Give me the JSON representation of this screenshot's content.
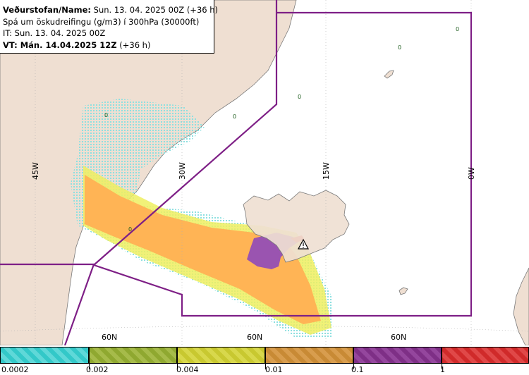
{
  "header": {
    "line1_label": "Veðurstofan/Name:",
    "line1_value": "Sun. 13. 04. 2025 00Z (+36 h)",
    "line2": "Spá um öskudreifingu (g/m3) í 300hPa (30000ft)",
    "line3": "IT: Sun. 13. 04. 2025 00Z",
    "line4_label": "VT: Mán. 14.04.2025 12Z",
    "line4_value": "(+36 h)"
  },
  "map": {
    "meridian_labels": [
      "45W",
      "30W",
      "15W",
      "0W"
    ],
    "parallel_labels": [
      "60N",
      "60N",
      "60N"
    ],
    "contour_labels": [
      "0",
      "0",
      "0",
      "0",
      "0",
      "0"
    ],
    "colors": {
      "land": "#efdfd2",
      "sea": "#ffffff",
      "coast": "#7a7a7a",
      "fir_boundary": "#7e1f86",
      "grid": "#b0b0b0",
      "ash_light_cyan": "#8ee0e0",
      "ash_yellow": "#eeee60",
      "ash_orange": "#ffb455",
      "ash_purple": "#9a54b0",
      "ash_red": "#e03a3a"
    },
    "volcano_marker": "warning-triangle-icon"
  },
  "legend": {
    "ticks": [
      "0.0002",
      "0.002",
      "0.004",
      "0.01",
      "0.1",
      "1"
    ],
    "colors": [
      "#33c8c8",
      "#8fa830",
      "#c8c830",
      "#c88a35",
      "#7e2f86",
      "#d02a2a"
    ]
  }
}
